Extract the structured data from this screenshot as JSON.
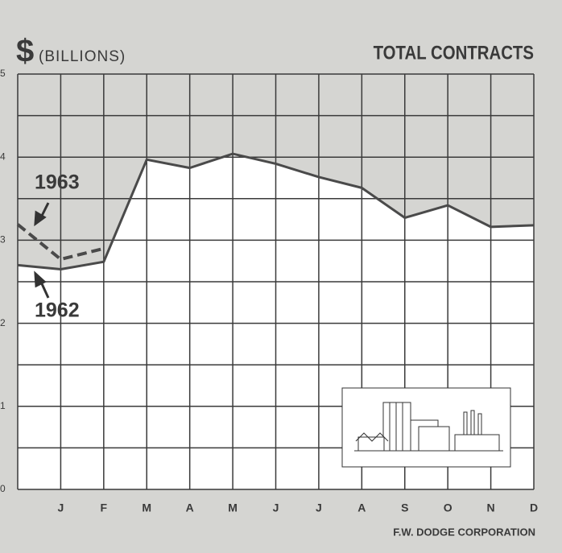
{
  "chart_data": {
    "type": "line",
    "title": "TOTAL CONTRACTS",
    "y_label_symbol": "$",
    "y_label": "(BILLIONS)",
    "source": "F.W. DODGE CORPORATION",
    "categories": [
      null,
      "J",
      "F",
      "M",
      "A",
      "M",
      "J",
      "J",
      "A",
      "S",
      "O",
      "N",
      "D"
    ],
    "series": [
      {
        "name": "1962",
        "color": "#4a4a4a",
        "dashed": false,
        "values": [
          2.7,
          2.65,
          2.74,
          3.97,
          3.87,
          4.04,
          3.92,
          3.76,
          3.63,
          3.27,
          3.42,
          3.16,
          3.18
        ]
      },
      {
        "name": "1963",
        "color": "#4a4a4a",
        "dashed": true,
        "values": [
          3.19,
          2.77,
          2.9,
          null,
          null,
          null,
          null,
          null,
          null,
          null,
          null,
          null,
          null
        ]
      }
    ],
    "ylim": [
      0,
      5
    ],
    "yticks": [
      0,
      1,
      2,
      3,
      4,
      5
    ],
    "minor_yticks": [
      0.5,
      1.5,
      2.5,
      3.5,
      4.5
    ],
    "grid": true
  }
}
